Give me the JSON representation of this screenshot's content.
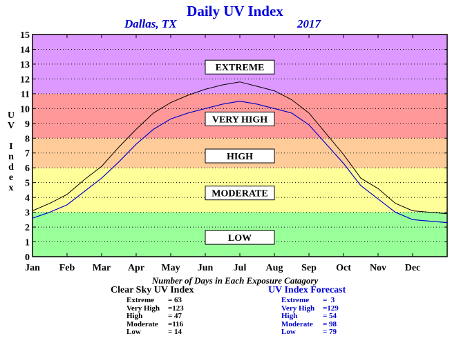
{
  "header": {
    "title": "Daily UV Index",
    "location": "Dallas, TX",
    "year": "2017"
  },
  "chart_data": {
    "type": "line",
    "ylabel": "UV Index",
    "ylim": [
      0,
      15
    ],
    "yticks": [
      "0",
      "1",
      "2",
      "3",
      "4",
      "5",
      "6",
      "7",
      "8",
      "9",
      "10",
      "11",
      "12",
      "13",
      "14",
      "15"
    ],
    "months": [
      "Jan",
      "Feb",
      "Mar",
      "Apr",
      "May",
      "Jun",
      "Jul",
      "Aug",
      "Sep",
      "Oct",
      "Nov",
      "Dec"
    ],
    "grid": true,
    "bands": [
      {
        "label": "LOW",
        "from": 0,
        "to": 3,
        "color": "#99ff99"
      },
      {
        "label": "MODERATE",
        "from": 3,
        "to": 6,
        "color": "#ffff99"
      },
      {
        "label": "HIGH",
        "from": 6,
        "to": 8,
        "color": "#ffcc99"
      },
      {
        "label": "VERY HIGH",
        "from": 8,
        "to": 11,
        "color": "#ff9999"
      },
      {
        "label": "EXTREME",
        "from": 11,
        "to": 15,
        "color": "#dd99ff"
      }
    ],
    "series": [
      {
        "name": "Clear Sky UV Index",
        "color": "#000000",
        "x_month": [
          0,
          0.5,
          1,
          1.5,
          2,
          2.5,
          3,
          3.5,
          4,
          4.5,
          5,
          5.5,
          6,
          6.5,
          7,
          7.5,
          8,
          8.5,
          9,
          9.5,
          10,
          10.5,
          11,
          11.5,
          12
        ],
        "values": [
          3.1,
          3.6,
          4.2,
          5.2,
          6.1,
          7.4,
          8.6,
          9.7,
          10.4,
          10.9,
          11.3,
          11.6,
          11.8,
          11.5,
          11.2,
          10.6,
          9.7,
          8.3,
          6.9,
          5.3,
          4.6,
          3.6,
          3.1,
          3.0,
          2.9
        ]
      },
      {
        "name": "UV Index Forecast",
        "color": "#0000cc",
        "x_month": [
          0,
          0.5,
          1,
          1.5,
          2,
          2.5,
          3,
          3.5,
          4,
          4.5,
          5,
          5.5,
          6,
          6.5,
          7,
          7.5,
          8,
          8.5,
          9,
          9.5,
          10,
          10.5,
          11,
          11.5,
          12
        ],
        "values": [
          2.6,
          3.0,
          3.5,
          4.4,
          5.3,
          6.4,
          7.6,
          8.6,
          9.3,
          9.7,
          10.0,
          10.3,
          10.5,
          10.3,
          10.0,
          9.7,
          8.9,
          7.6,
          6.3,
          4.8,
          3.9,
          3.0,
          2.5,
          2.4,
          2.3
        ]
      }
    ]
  },
  "footer": {
    "caption": "Number of Days in Each Exposure Catagory",
    "clear_sky": {
      "heading": "Clear Sky UV Index",
      "rows": [
        {
          "label": "Extreme",
          "value": "= 63"
        },
        {
          "label": "Very High",
          "value": "=123"
        },
        {
          "label": "High",
          "value": "= 47"
        },
        {
          "label": "Moderate",
          "value": "=116"
        },
        {
          "label": "Low",
          "value": "= 14"
        }
      ]
    },
    "forecast": {
      "heading": "UV Index Forecast",
      "rows": [
        {
          "label": "Extreme",
          "value": "=  3"
        },
        {
          "label": "Very High",
          "value": "=129"
        },
        {
          "label": "High",
          "value": "= 54"
        },
        {
          "label": "Moderate",
          "value": "= 98"
        },
        {
          "label": "Low",
          "value": "= 79"
        }
      ]
    }
  }
}
